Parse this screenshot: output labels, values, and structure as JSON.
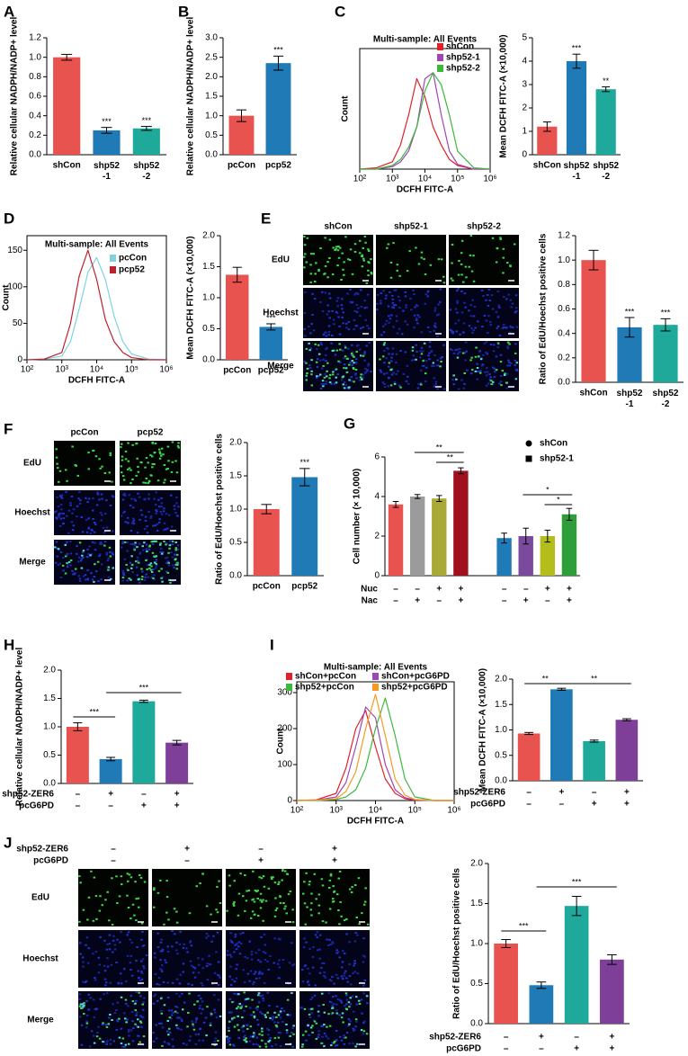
{
  "panel_labels": [
    "A",
    "B",
    "C",
    "D",
    "E",
    "F",
    "G",
    "H",
    "I",
    "J"
  ],
  "chart_data": [
    {
      "type": "bar",
      "y_label": "Relative cellular NADPH/NADP+ level",
      "categories": [
        "shCon",
        [
          "shp52",
          "-1"
        ],
        [
          "shp52",
          "-2"
        ]
      ],
      "values": [
        1.0,
        0.25,
        0.27
      ],
      "errors": [
        0.03,
        0.03,
        0.02
      ],
      "colors": [
        "#e8534f",
        "#1f7ab5",
        "#1fa99b"
      ],
      "significance": [
        null,
        "***",
        "***"
      ],
      "ylim": [
        0,
        1.2
      ],
      "yticks": [
        {
          "value": 0,
          "label": "0.0"
        },
        0.2,
        0.4,
        0.6,
        0.8,
        {
          "value": 1,
          "label": "1.0"
        },
        1.2
      ]
    },
    {
      "type": "bar",
      "y_label": "Relative cellular NADPH/NADP+ level",
      "categories": [
        "pcCon",
        "pcp52"
      ],
      "values": [
        1.0,
        2.35
      ],
      "errors": [
        0.15,
        0.18
      ],
      "colors": [
        "#e8534f",
        "#1f7ab5"
      ],
      "significance": [
        null,
        "***"
      ],
      "ylim": [
        0,
        3
      ],
      "yticks": [
        {
          "value": 0,
          "label": "0.0"
        },
        0.5,
        {
          "value": 1,
          "label": "1.0"
        },
        1.5,
        {
          "value": 2,
          "label": "2.0"
        },
        2.5,
        {
          "value": 3,
          "label": "3.0"
        }
      ]
    },
    {
      "type": "line",
      "title": "Multi-sample: All Events",
      "x_label": "DCFH FITC-A",
      "y_label": "Count",
      "xscale": "log",
      "x": [
        100,
        316,
        1000,
        1778,
        3162,
        5623,
        10000,
        17783,
        31623,
        56234,
        100000,
        316228,
        1000000
      ],
      "xlim": [
        100,
        1000000
      ],
      "xticks": [
        {
          "value": 100,
          "label": "10²"
        },
        {
          "value": 1000,
          "label": "10³"
        },
        {
          "value": 10000,
          "label": "10⁴"
        },
        {
          "value": 100000,
          "label": "10⁵"
        },
        {
          "value": 1000000,
          "label": "10⁶"
        }
      ],
      "ylim": [
        0,
        100
      ],
      "series": [
        {
          "name": "shCon",
          "color": "#e0202a",
          "values": [
            0,
            1,
            6,
            20,
            45,
            75,
            60,
            35,
            20,
            8,
            3,
            0,
            0
          ]
        },
        {
          "name": "shp52-1",
          "color": "#a046b4",
          "values": [
            0,
            0,
            2,
            6,
            15,
            35,
            75,
            80,
            45,
            15,
            4,
            0,
            0
          ]
        },
        {
          "name": "shp52-2",
          "color": "#3cb83c",
          "values": [
            0,
            0,
            3,
            8,
            18,
            35,
            65,
            80,
            70,
            45,
            15,
            1,
            0
          ]
        }
      ]
    },
    {
      "type": "bar",
      "y_label": "Mean DCFH FITC-A (×10,000)",
      "categories": [
        "shCon",
        [
          "shp52",
          "-1"
        ],
        [
          "shp52",
          "-2"
        ]
      ],
      "values": [
        1.2,
        4.0,
        2.8
      ],
      "errors": [
        0.2,
        0.3,
        0.1
      ],
      "colors": [
        "#e8534f",
        "#1f7ab5",
        "#1fa99b"
      ],
      "significance": [
        null,
        "***",
        "**"
      ],
      "ylim": [
        0,
        5
      ],
      "yticks": [
        0,
        1,
        2,
        3,
        4,
        5
      ]
    },
    {
      "type": "line",
      "title": "Multi-sample: All Events",
      "x_label": "DCFH FITC-A",
      "y_label": "Count",
      "xscale": "log",
      "x": [
        100,
        316,
        1000,
        1778,
        3162,
        5623,
        10000,
        17783,
        31623,
        56234,
        100000,
        316228,
        1000000
      ],
      "xlim": [
        100,
        1000000
      ],
      "xticks": [
        {
          "value": 100,
          "label": "10²"
        },
        {
          "value": 1000,
          "label": "10³"
        },
        {
          "value": 10000,
          "label": "10⁴"
        },
        {
          "value": 100000,
          "label": "10⁵"
        },
        {
          "value": 1000000,
          "label": "10⁶"
        }
      ],
      "ylim": [
        0,
        170
      ],
      "yticks": [
        0,
        50,
        100,
        150
      ],
      "series": [
        {
          "name": "pcCon",
          "color": "#7fd3df",
          "values": [
            0,
            1,
            5,
            25,
            70,
            120,
            140,
            110,
            60,
            25,
            8,
            1,
            0
          ]
        },
        {
          "name": "pcp52",
          "color": "#c0202a",
          "values": [
            0,
            1,
            10,
            50,
            115,
            150,
            110,
            55,
            25,
            10,
            3,
            0,
            0
          ]
        }
      ]
    },
    {
      "type": "bar",
      "y_label": "Mean DCFH FITC-A (×10,000)",
      "categories": [
        "pcCon",
        "pcp52"
      ],
      "values": [
        1.37,
        0.53
      ],
      "errors": [
        0.12,
        0.05
      ],
      "colors": [
        "#e8534f",
        "#1f7ab5"
      ],
      "significance": [
        null,
        "***"
      ],
      "ylim": [
        0,
        2
      ],
      "yticks": [
        {
          "value": 0,
          "label": "0.0"
        },
        0.5,
        {
          "value": 1,
          "label": "1.0"
        },
        1.5,
        {
          "value": 2,
          "label": "2.0"
        }
      ]
    },
    {
      "type": "bar",
      "y_label": "Ratio of EdU/Hoechst positive cells",
      "categories": [
        "shCon",
        [
          "shp52",
          "-1"
        ],
        [
          "shp52",
          "-2"
        ]
      ],
      "values": [
        1.0,
        0.45,
        0.47
      ],
      "errors": [
        0.08,
        0.08,
        0.05
      ],
      "colors": [
        "#e8534f",
        "#1f7ab5",
        "#1fa99b"
      ],
      "significance": [
        null,
        "***",
        "***"
      ],
      "ylim": [
        0,
        1.2
      ],
      "yticks": [
        {
          "value": 0,
          "label": "0.0"
        },
        0.2,
        0.4,
        0.6,
        0.8,
        {
          "value": 1,
          "label": "1.0"
        },
        1.2
      ]
    },
    {
      "type": "bar",
      "y_label": "Ratio of EdU/Hoechst positive cells",
      "categories": [
        "pcCon",
        "pcp52"
      ],
      "values": [
        1.0,
        1.48
      ],
      "errors": [
        0.07,
        0.13
      ],
      "colors": [
        "#e8534f",
        "#1f7ab5"
      ],
      "significance": [
        null,
        "***"
      ],
      "ylim": [
        0,
        2
      ],
      "yticks": [
        {
          "value": 0,
          "label": "0.0"
        },
        0.5,
        {
          "value": 1,
          "label": "1.0"
        },
        1.5,
        {
          "value": 2,
          "label": "2.0"
        }
      ]
    },
    {
      "type": "bar",
      "y_label": "Cell number (× 10,000)",
      "values": [
        3.6,
        4.0,
        3.9,
        5.3,
        1.9,
        2.0,
        2.0,
        3.1
      ],
      "errors": [
        0.15,
        0.1,
        0.15,
        0.15,
        0.25,
        0.4,
        0.3,
        0.3
      ],
      "colors": [
        "#e8534f",
        "#9b9b9b",
        "#a9a938",
        "#a0101e",
        "#1f7ab5",
        "#7a4a9c",
        "#b3be1a",
        "#2e9e3a"
      ],
      "ylim": [
        0,
        6
      ],
      "yticks": [
        0,
        2,
        4,
        6
      ],
      "legend": [
        {
          "name": "shCon",
          "marker": "circle"
        },
        {
          "name": "shp52-1",
          "marker": "square"
        }
      ],
      "conditions": [
        {
          "name": "Nuc",
          "marks": [
            "–",
            "–",
            "+",
            "+",
            "–",
            "–",
            "+",
            "+"
          ]
        },
        {
          "name": "Nac",
          "marks": [
            "–",
            "+",
            "–",
            "+",
            "–",
            "+",
            "–",
            "+"
          ]
        }
      ],
      "comparisons": [
        "**",
        "**",
        "*",
        "*"
      ]
    },
    {
      "type": "bar",
      "y_label": "Relative cellular NADPH/NADP+ level",
      "values": [
        1.0,
        0.43,
        1.45,
        0.72
      ],
      "errors": [
        0.07,
        0.03,
        0.02,
        0.04
      ],
      "colors": [
        "#e8534f",
        "#1f7ab5",
        "#1fa99b",
        "#7d3f98"
      ],
      "ylim": [
        0,
        2
      ],
      "yticks": [
        {
          "value": 0,
          "label": "0.0"
        },
        0.5,
        {
          "value": 1,
          "label": "1.0"
        },
        1.5,
        {
          "value": 2,
          "label": "2.0"
        }
      ],
      "conditions": [
        {
          "name": "shp52-ZER6",
          "marks": [
            "–",
            "+",
            "–",
            "+"
          ]
        },
        {
          "name": "pcG6PD",
          "marks": [
            "–",
            "–",
            "+",
            "+"
          ]
        }
      ],
      "comparisons": [
        "***",
        "***"
      ]
    },
    {
      "type": "line",
      "title": "Multi-sample: All Events",
      "x_label": "DCFH FITC-A",
      "y_label": "Count",
      "xscale": "log",
      "x": [
        100,
        316,
        1000,
        1778,
        3162,
        5623,
        10000,
        17783,
        31623,
        56234,
        100000,
        316228,
        1000000
      ],
      "xlim": [
        100,
        1000000
      ],
      "xticks": [
        {
          "value": 100,
          "label": "10²"
        },
        {
          "value": 1000,
          "label": "10³"
        },
        {
          "value": 10000,
          "label": "10⁴"
        },
        {
          "value": 100000,
          "label": "10⁵"
        },
        {
          "value": 1000000,
          "label": "10⁶"
        }
      ],
      "ylim": [
        0,
        330
      ],
      "yticks": [
        0,
        100,
        200,
        300
      ],
      "series": [
        {
          "name": "shCon+pcCon",
          "color": "#e0202a",
          "values": [
            0,
            2,
            20,
            90,
            200,
            250,
            150,
            60,
            20,
            5,
            1,
            0,
            0
          ]
        },
        {
          "name": "shCon+pcG6PD",
          "color": "#a046b4",
          "values": [
            0,
            1,
            10,
            50,
            150,
            260,
            230,
            100,
            30,
            8,
            2,
            0,
            0
          ]
        },
        {
          "name": "shp52+pcCon",
          "color": "#3cb83c",
          "values": [
            0,
            0,
            3,
            10,
            30,
            90,
            200,
            285,
            180,
            60,
            10,
            0,
            0
          ]
        },
        {
          "name": "shp52+pcG6PD",
          "color": "#f59a1e",
          "values": [
            0,
            1,
            5,
            25,
            80,
            200,
            295,
            180,
            60,
            15,
            3,
            0,
            0
          ]
        }
      ]
    },
    {
      "type": "bar",
      "y_label": "Mean DCFH FITC-A (×10,000)",
      "values": [
        0.93,
        1.8,
        0.78,
        1.2
      ],
      "errors": [
        0.02,
        0.02,
        0.02,
        0.02
      ],
      "colors": [
        "#e8534f",
        "#1f7ab5",
        "#1fa99b",
        "#7d3f98"
      ],
      "ylim": [
        0,
        2
      ],
      "yticks": [
        {
          "value": 0,
          "label": "0.0"
        },
        0.5,
        {
          "value": 1,
          "label": "1.0"
        },
        1.5,
        {
          "value": 2,
          "label": "2.0"
        }
      ],
      "conditions": [
        {
          "name": "shp52-ZER6",
          "marks": [
            "–",
            "+",
            "–",
            "+"
          ]
        },
        {
          "name": "pcG6PD",
          "marks": [
            "–",
            "–",
            "+",
            "+"
          ]
        }
      ],
      "comparisons": [
        "**",
        "**"
      ]
    },
    {
      "type": "bar",
      "y_label": "Ratio of EdU/Hoechst positive cells",
      "values": [
        1.0,
        0.48,
        1.47,
        0.8
      ],
      "errors": [
        0.05,
        0.04,
        0.12,
        0.06
      ],
      "colors": [
        "#e8534f",
        "#1f7ab5",
        "#1fa99b",
        "#7d3f98"
      ],
      "ylim": [
        0,
        2
      ],
      "yticks": [
        {
          "value": 0,
          "label": "0.0"
        },
        0.5,
        {
          "value": 1,
          "label": "1.0"
        },
        1.5,
        {
          "value": 2,
          "label": "2.0"
        }
      ],
      "conditions": [
        {
          "name": "shp52-ZER6",
          "marks": [
            "–",
            "+",
            "–",
            "+"
          ]
        },
        {
          "name": "pcG6PD",
          "marks": [
            "–",
            "–",
            "+",
            "+"
          ]
        }
      ],
      "comparisons": [
        "***",
        "***"
      ]
    }
  ],
  "image_grids": [
    {
      "columns": [
        "shCon",
        "shp52-1",
        "shp52-2"
      ],
      "rows": [
        "EdU",
        "Hoechst",
        "Merge"
      ]
    },
    {
      "columns": [
        "pcCon",
        "pcp52"
      ],
      "rows": [
        "EdU",
        "Hoechst",
        "Merge"
      ]
    },
    {
      "conditions": [
        {
          "name": "shp52-ZER6",
          "marks": [
            "–",
            "+",
            "–",
            "+"
          ]
        },
        {
          "name": "pcG6PD",
          "marks": [
            "–",
            "–",
            "+",
            "+"
          ]
        }
      ],
      "rows": [
        "EdU",
        "Hoechst",
        "Merge"
      ]
    }
  ]
}
